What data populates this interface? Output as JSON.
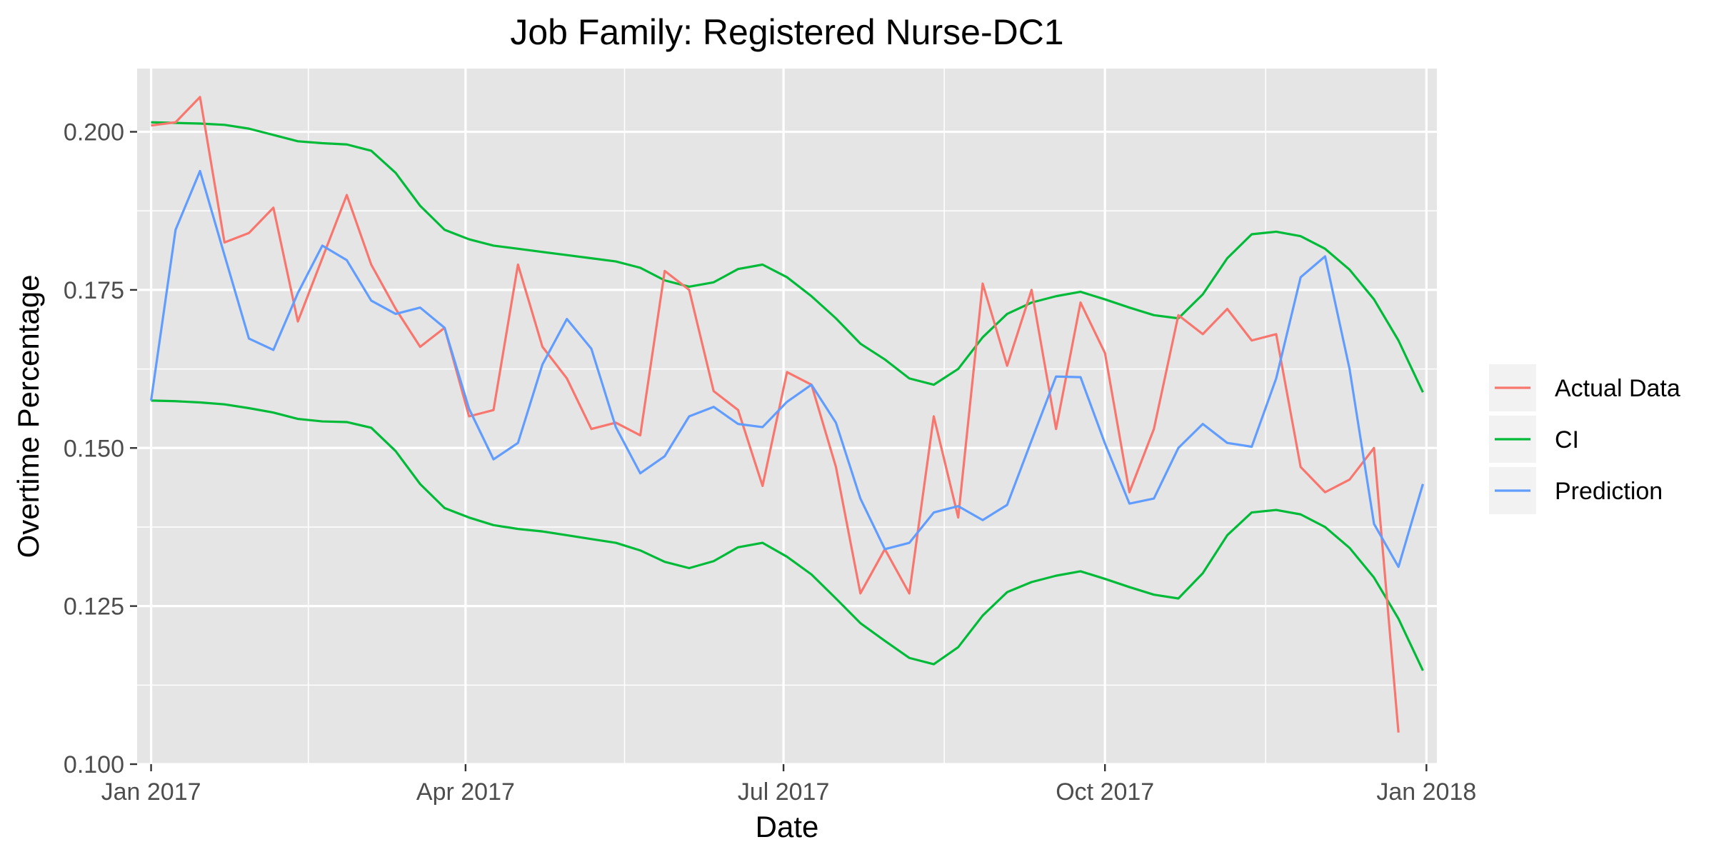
{
  "chart_data": {
    "type": "line",
    "title": "Job Family: Registered Nurse-DC1",
    "xlabel": "Date",
    "ylabel": "Overtime Percentage",
    "xlim": [
      "2016-12-28",
      "2018-01-04"
    ],
    "ylim": [
      0.1,
      0.21
    ],
    "x_ticks": [
      {
        "date": "2017-01-01",
        "label": "Jan 2017"
      },
      {
        "date": "2017-04-01",
        "label": "Apr 2017"
      },
      {
        "date": "2017-07-01",
        "label": "Jul 2017"
      },
      {
        "date": "2017-10-01",
        "label": "Oct 2017"
      },
      {
        "date": "2018-01-01",
        "label": "Jan 2018"
      }
    ],
    "y_ticks": [
      {
        "value": 0.1,
        "label": "0.100"
      },
      {
        "value": 0.125,
        "label": "0.125"
      },
      {
        "value": 0.15,
        "label": "0.150"
      },
      {
        "value": 0.175,
        "label": "0.175"
      },
      {
        "value": 0.2,
        "label": "0.200"
      }
    ],
    "grid": true,
    "legend_position": "right",
    "colors": {
      "panel": "#e5e5e5",
      "grid": "#ffffff",
      "actual": "#F8766D",
      "ci": "#00BA38",
      "prediction": "#619CFF"
    },
    "x": [
      "2017-01-01",
      "2017-01-08",
      "2017-01-15",
      "2017-01-22",
      "2017-01-29",
      "2017-02-05",
      "2017-02-12",
      "2017-02-19",
      "2017-02-26",
      "2017-03-05",
      "2017-03-12",
      "2017-03-19",
      "2017-03-26",
      "2017-04-02",
      "2017-04-09",
      "2017-04-16",
      "2017-04-23",
      "2017-04-30",
      "2017-05-07",
      "2017-05-14",
      "2017-05-21",
      "2017-05-28",
      "2017-06-04",
      "2017-06-11",
      "2017-06-18",
      "2017-06-25",
      "2017-07-02",
      "2017-07-09",
      "2017-07-16",
      "2017-07-23",
      "2017-07-30",
      "2017-08-06",
      "2017-08-13",
      "2017-08-20",
      "2017-08-27",
      "2017-09-03",
      "2017-09-10",
      "2017-09-17",
      "2017-09-24",
      "2017-10-01",
      "2017-10-08",
      "2017-10-15",
      "2017-10-22",
      "2017-10-29",
      "2017-11-05",
      "2017-11-12",
      "2017-11-19",
      "2017-11-26",
      "2017-12-03",
      "2017-12-10",
      "2017-12-17",
      "2017-12-24",
      "2017-12-31"
    ],
    "series": [
      {
        "name": "Actual Data",
        "key": "actual",
        "values": [
          0.201,
          0.2015,
          0.2055,
          0.1825,
          0.184,
          0.188,
          0.17,
          0.18,
          0.19,
          0.179,
          0.172,
          0.166,
          0.169,
          0.155,
          0.156,
          0.179,
          0.166,
          0.161,
          0.153,
          0.154,
          0.152,
          0.178,
          0.175,
          0.159,
          0.156,
          0.144,
          0.162,
          0.16,
          0.147,
          0.127,
          0.134,
          0.127,
          0.155,
          0.139,
          0.176,
          0.163,
          0.175,
          0.153,
          0.173,
          0.165,
          0.143,
          0.153,
          0.171,
          0.168,
          0.172,
          0.167,
          0.168,
          0.147,
          0.143,
          0.145,
          0.15,
          0.105,
          null
        ]
      },
      {
        "name": "CI",
        "key": "ci_upper",
        "values": [
          0.2015,
          0.2014,
          0.2013,
          0.2011,
          0.2005,
          0.1995,
          0.1985,
          0.1982,
          0.198,
          0.197,
          0.1935,
          0.1883,
          0.1845,
          0.183,
          0.182,
          0.1815,
          0.181,
          0.1805,
          0.18,
          0.1795,
          0.1785,
          0.1765,
          0.1755,
          0.1762,
          0.1783,
          0.179,
          0.177,
          0.174,
          0.1705,
          0.1665,
          0.164,
          0.161,
          0.16,
          0.1625,
          0.1675,
          0.1712,
          0.173,
          0.174,
          0.1747,
          0.1735,
          0.1722,
          0.171,
          0.1705,
          0.1743,
          0.18,
          0.1838,
          0.1842,
          0.1835,
          0.1815,
          0.1782,
          0.1735,
          0.167,
          0.1588
        ]
      },
      {
        "name": "CI",
        "key": "ci_lower",
        "values": [
          0.1575,
          0.1574,
          0.1572,
          0.1569,
          0.1563,
          0.1556,
          0.1546,
          0.1542,
          0.1541,
          0.1532,
          0.1495,
          0.1443,
          0.1405,
          0.139,
          0.1378,
          0.1372,
          0.1368,
          0.1362,
          0.1356,
          0.135,
          0.1338,
          0.132,
          0.131,
          0.1321,
          0.1343,
          0.135,
          0.1328,
          0.13,
          0.1262,
          0.1223,
          0.1195,
          0.1168,
          0.1158,
          0.1185,
          0.1235,
          0.1272,
          0.1288,
          0.1298,
          0.1305,
          0.1293,
          0.128,
          0.1268,
          0.1262,
          0.1302,
          0.1362,
          0.1398,
          0.1402,
          0.1395,
          0.1375,
          0.1342,
          0.1295,
          0.123,
          0.1148
        ]
      },
      {
        "name": "Prediction",
        "key": "prediction",
        "values": [
          0.1575,
          0.1845,
          0.1938,
          0.1805,
          0.1673,
          0.1655,
          0.1745,
          0.182,
          0.1797,
          0.1733,
          0.1712,
          0.1722,
          0.169,
          0.1562,
          0.1482,
          0.1508,
          0.1632,
          0.1704,
          0.1657,
          0.1533,
          0.146,
          0.1487,
          0.155,
          0.1565,
          0.1538,
          0.1533,
          0.1573,
          0.16,
          0.154,
          0.142,
          0.134,
          0.135,
          0.1398,
          0.1408,
          0.1386,
          0.141,
          0.1512,
          0.1613,
          0.1612,
          0.1507,
          0.1412,
          0.142,
          0.15,
          0.1538,
          0.1508,
          0.1502,
          0.161,
          0.177,
          0.1803,
          0.1625,
          0.138,
          0.1312,
          0.1443
        ]
      }
    ]
  }
}
